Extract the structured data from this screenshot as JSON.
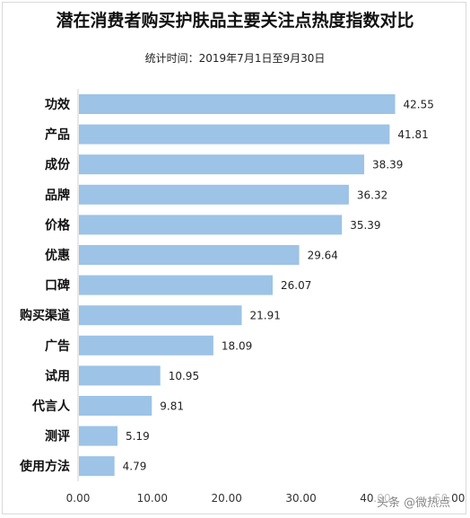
{
  "chart_data": {
    "type": "bar",
    "orientation": "horizontal",
    "title": "潜在消费者购买护肤品主要关注点热度指数对比",
    "subtitle": "统计时间：2019年7月1日至9月30日",
    "categories": [
      "功效",
      "产品",
      "成份",
      "品牌",
      "价格",
      "优惠",
      "口碑",
      "购买渠道",
      "广告",
      "试用",
      "代言人",
      "测评",
      "使用方法"
    ],
    "values": [
      42.55,
      41.81,
      38.39,
      36.32,
      35.39,
      29.64,
      26.07,
      21.91,
      18.09,
      10.95,
      9.81,
      5.19,
      4.79
    ],
    "value_labels": [
      "42.55",
      "41.81",
      "38.39",
      "36.32",
      "35.39",
      "29.64",
      "26.07",
      "21.91",
      "18.09",
      "10.95",
      "9.81",
      "5.19",
      "4.79"
    ],
    "xlim": [
      0,
      50
    ],
    "xticks": [
      "0.00",
      "10.00",
      "20.00",
      "30.00",
      "40.00",
      "50.00"
    ],
    "xlabel": "",
    "ylabel": "",
    "bar_color": "#9dc3e6",
    "grid": false
  },
  "watermark": "头条 @微热点"
}
